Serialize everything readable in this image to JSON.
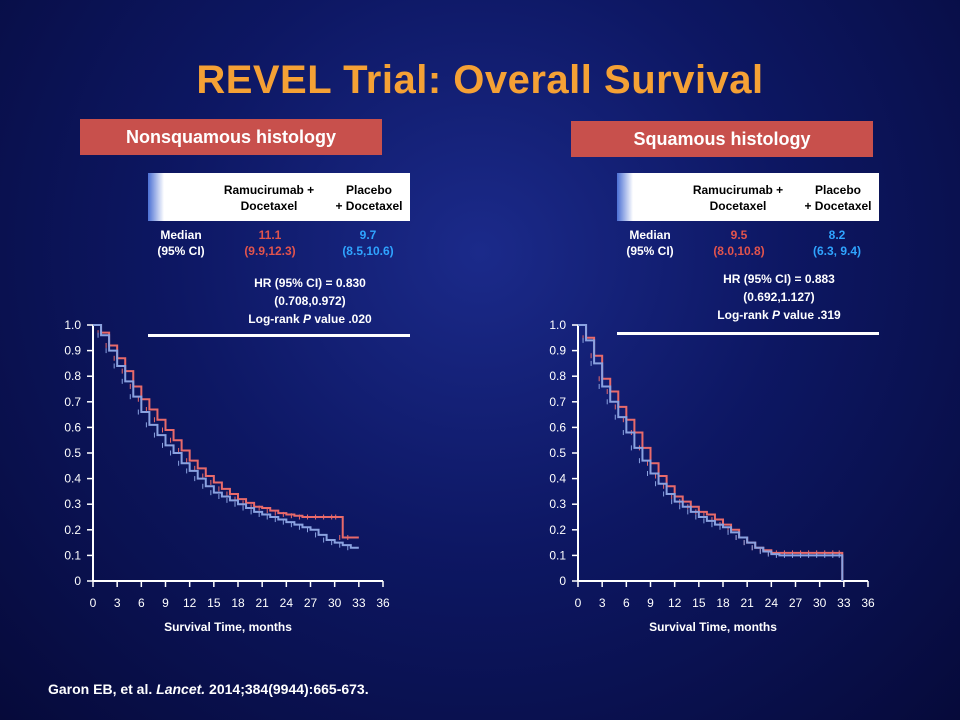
{
  "title": "REVEL Trial: Overall Survival",
  "citation": {
    "authors": "Garon EB, et al.",
    "journal": "Lancet.",
    "details": "2014;384(9944):665-673."
  },
  "colors": {
    "title": "#f5a135",
    "label_bg": "#c8504c",
    "ramucirumab": "#e2544d",
    "placebo": "#2fa4ff",
    "curve_red": "#e86a6a",
    "curve_blue": "#8aa2e0"
  },
  "panels": [
    {
      "label": "Nonsquamous histology",
      "col1_header_line1": "Ramucirumab +",
      "col1_header_line2": "Docetaxel",
      "col2_header_line1": "Placebo",
      "col2_header_line2": "+ Docetaxel",
      "row_label_line1": "Median",
      "row_label_line2": "(95% CI)",
      "ram_median": "11.1",
      "ram_ci": "(9.9,12.3)",
      "pla_median": "9.7",
      "pla_ci": "(8.5,10.6)",
      "hr_line1": "HR (95% CI) = 0.830",
      "hr_line2": "(0.708,0.972)",
      "hr_line3_pre": "Log-rank ",
      "hr_line3_p": "P",
      "hr_line3_post": " value .020"
    },
    {
      "label": "Squamous histology",
      "col1_header_line1": "Ramucirumab +",
      "col1_header_line2": "Docetaxel",
      "col2_header_line1": "Placebo",
      "col2_header_line2": "+ Docetaxel",
      "row_label_line1": "Median",
      "row_label_line2": "(95% CI)",
      "ram_median": "9.5",
      "ram_ci": "(8.0,10.8)",
      "pla_median": "8.2",
      "pla_ci": "(6.3, 9.4)",
      "hr_line1": "HR (95% CI) = 0.883",
      "hr_line2": "(0.692,1.127)",
      "hr_line3_pre": "Log-rank ",
      "hr_line3_p": "P",
      "hr_line3_post": " value .319"
    }
  ],
  "chart_data": [
    {
      "type": "line",
      "xlabel": "Survival Time, months",
      "ylabel": "",
      "x_ticks": [
        "0",
        "3",
        "6",
        "9",
        "12",
        "15",
        "18",
        "21",
        "24",
        "27",
        "30",
        "33",
        "36"
      ],
      "y_ticks": [
        "0",
        "0.1",
        "0.2",
        "0.3",
        "0.4",
        "0.5",
        "0.6",
        "0.7",
        "0.8",
        "0.9",
        "1.0"
      ],
      "xlim": [
        0,
        36
      ],
      "ylim": [
        0,
        1
      ],
      "series": [
        {
          "color": "#e86a6a",
          "x": [
            0,
            1,
            2,
            3,
            4,
            5,
            6,
            7,
            8,
            9,
            10,
            11,
            12,
            13,
            14,
            15,
            16,
            17,
            18,
            19,
            20,
            21,
            22,
            23,
            24,
            25,
            26,
            27,
            28,
            29,
            30,
            30.5,
            31,
            32,
            33
          ],
          "y": [
            1.0,
            0.97,
            0.92,
            0.87,
            0.82,
            0.76,
            0.71,
            0.67,
            0.63,
            0.59,
            0.55,
            0.51,
            0.47,
            0.44,
            0.41,
            0.385,
            0.36,
            0.34,
            0.32,
            0.305,
            0.29,
            0.285,
            0.275,
            0.265,
            0.26,
            0.255,
            0.25,
            0.25,
            0.25,
            0.25,
            0.25,
            0.25,
            0.17,
            0.17,
            0.17
          ]
        },
        {
          "color": "#8aa2e0",
          "x": [
            0,
            1,
            2,
            3,
            4,
            5,
            6,
            7,
            8,
            9,
            10,
            11,
            12,
            13,
            14,
            15,
            16,
            17,
            18,
            19,
            20,
            21,
            22,
            23,
            24,
            25,
            26,
            27,
            28,
            29,
            30,
            31,
            32,
            33
          ],
          "y": [
            1.0,
            0.96,
            0.9,
            0.84,
            0.78,
            0.72,
            0.66,
            0.61,
            0.57,
            0.53,
            0.5,
            0.46,
            0.43,
            0.4,
            0.37,
            0.345,
            0.33,
            0.315,
            0.3,
            0.285,
            0.27,
            0.26,
            0.25,
            0.24,
            0.23,
            0.22,
            0.21,
            0.2,
            0.18,
            0.16,
            0.15,
            0.14,
            0.13,
            0.13
          ]
        }
      ]
    },
    {
      "type": "line",
      "xlabel": "Survival Time, months",
      "ylabel": "",
      "x_ticks": [
        "0",
        "3",
        "6",
        "9",
        "12",
        "15",
        "18",
        "21",
        "24",
        "27",
        "30",
        "33",
        "36"
      ],
      "y_ticks": [
        "0",
        "0.1",
        "0.2",
        "0.3",
        "0.4",
        "0.5",
        "0.6",
        "0.7",
        "0.8",
        "0.9",
        "1.0"
      ],
      "xlim": [
        0,
        36
      ],
      "ylim": [
        0,
        1
      ],
      "series": [
        {
          "color": "#e86a6a",
          "x": [
            0,
            1,
            2,
            3,
            4,
            5,
            6,
            7,
            8,
            9,
            10,
            11,
            12,
            13,
            14,
            15,
            16,
            17,
            18,
            19,
            20,
            21,
            22,
            23,
            24,
            25,
            26,
            27,
            28,
            29,
            30,
            31,
            32,
            32.8,
            32.81
          ],
          "y": [
            1.0,
            0.95,
            0.88,
            0.79,
            0.74,
            0.68,
            0.63,
            0.58,
            0.52,
            0.46,
            0.41,
            0.37,
            0.33,
            0.31,
            0.29,
            0.27,
            0.26,
            0.24,
            0.22,
            0.2,
            0.17,
            0.15,
            0.13,
            0.12,
            0.11,
            0.11,
            0.11,
            0.11,
            0.11,
            0.11,
            0.11,
            0.11,
            0.11,
            0.11,
            0.0
          ]
        },
        {
          "color": "#8aa2e0",
          "x": [
            0,
            1,
            2,
            3,
            4,
            5,
            6,
            7,
            8,
            9,
            10,
            11,
            12,
            13,
            14,
            15,
            16,
            17,
            18,
            19,
            20,
            21,
            22,
            23,
            24,
            25,
            26,
            27,
            28,
            29,
            30,
            31,
            32,
            32.8,
            32.81
          ],
          "y": [
            1.0,
            0.94,
            0.85,
            0.76,
            0.7,
            0.64,
            0.58,
            0.52,
            0.47,
            0.42,
            0.38,
            0.34,
            0.31,
            0.29,
            0.27,
            0.25,
            0.235,
            0.22,
            0.21,
            0.19,
            0.17,
            0.15,
            0.13,
            0.115,
            0.105,
            0.1,
            0.1,
            0.1,
            0.1,
            0.1,
            0.1,
            0.1,
            0.1,
            0.1,
            0.0
          ]
        }
      ]
    }
  ]
}
